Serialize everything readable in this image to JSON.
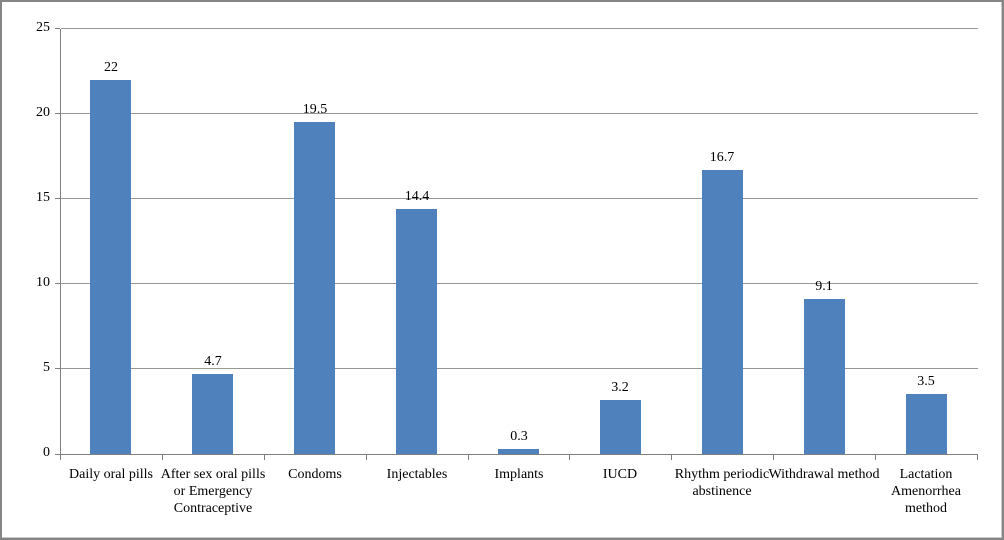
{
  "chart_data": {
    "type": "bar",
    "title": "",
    "xlabel": "",
    "ylabel": "",
    "categories": [
      "Daily oral pills",
      "After sex oral pills or Emergency Contraceptive",
      "Condoms",
      "Injectables",
      "Implants",
      "IUCD",
      "Rhythm periodic abstinence",
      "Withdrawal method",
      "Lactation Amenorrhea method"
    ],
    "values": [
      22,
      4.7,
      19.5,
      14.4,
      0.3,
      3.2,
      16.7,
      9.1,
      3.5
    ],
    "data_labels": [
      "22",
      "4.7",
      "19.5",
      "14.4",
      "0.3",
      "3.2",
      "16.7",
      "9.1",
      "3.5"
    ],
    "ylim": [
      0,
      25
    ],
    "yticks": [
      0,
      5,
      10,
      15,
      20,
      25
    ],
    "ytick_labels": [
      "0",
      "5",
      "10",
      "15",
      "20",
      "25"
    ],
    "grid": true,
    "legend_position": "none",
    "colors": {
      "bar": "#4F81BD",
      "gridline": "#969696",
      "axis": "#808080",
      "text": "#000000",
      "frame_border": "#858585",
      "background": "#FFFFFF"
    }
  }
}
